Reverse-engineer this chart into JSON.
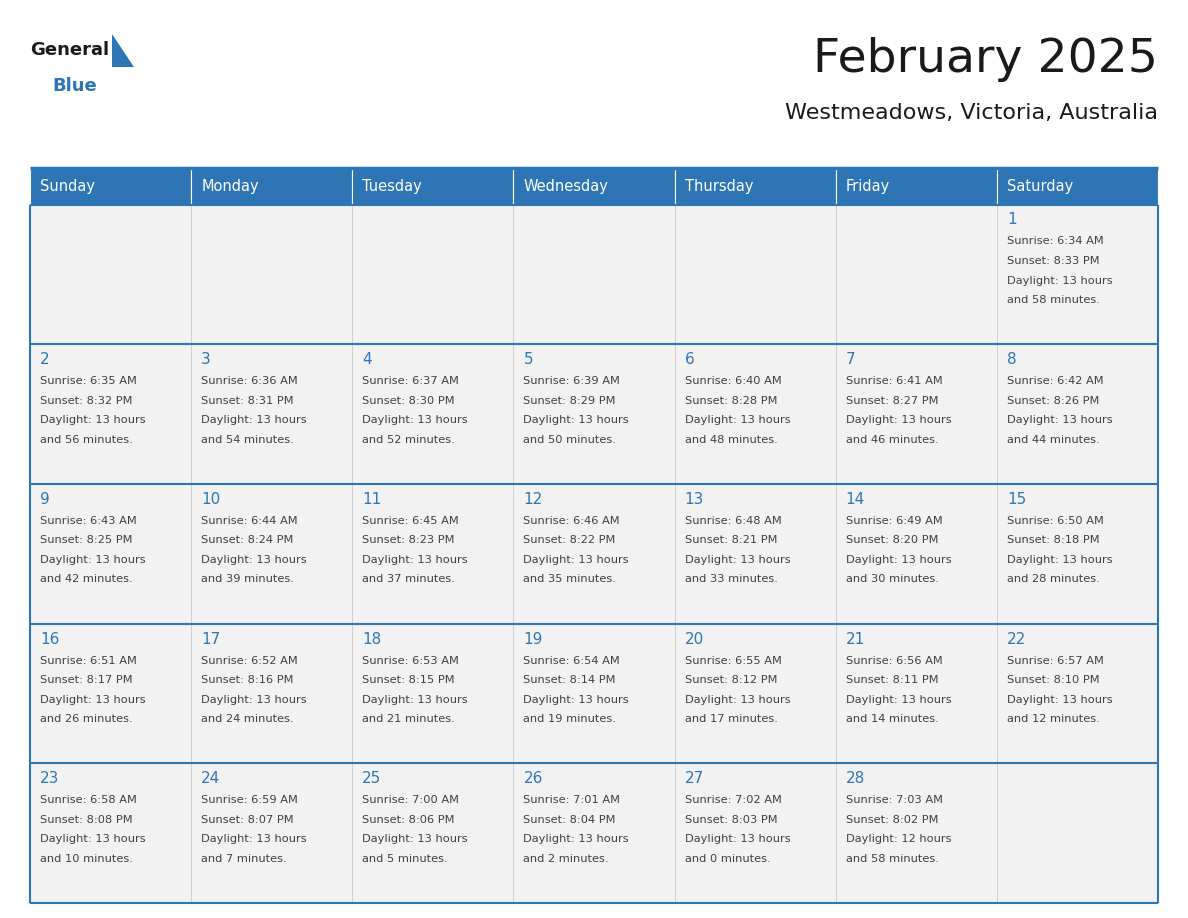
{
  "title": "February 2025",
  "subtitle": "Westmeadows, Victoria, Australia",
  "days_of_week": [
    "Sunday",
    "Monday",
    "Tuesday",
    "Wednesday",
    "Thursday",
    "Friday",
    "Saturday"
  ],
  "header_bg": "#2E75B6",
  "header_text": "#FFFFFF",
  "cell_bg": "#F2F2F2",
  "line_color": "#2E75B6",
  "day_number_color": "#2E75B6",
  "text_color": "#404040",
  "logo_general_color": "#1a1a1a",
  "logo_blue_color": "#2E75B6",
  "calendar_data": [
    [
      null,
      null,
      null,
      null,
      null,
      null,
      {
        "day": 1,
        "sunrise": "6:34 AM",
        "sunset": "8:33 PM",
        "daylight_h": "13 hours",
        "daylight_m": "58 minutes."
      }
    ],
    [
      {
        "day": 2,
        "sunrise": "6:35 AM",
        "sunset": "8:32 PM",
        "daylight_h": "13 hours",
        "daylight_m": "56 minutes."
      },
      {
        "day": 3,
        "sunrise": "6:36 AM",
        "sunset": "8:31 PM",
        "daylight_h": "13 hours",
        "daylight_m": "54 minutes."
      },
      {
        "day": 4,
        "sunrise": "6:37 AM",
        "sunset": "8:30 PM",
        "daylight_h": "13 hours",
        "daylight_m": "52 minutes."
      },
      {
        "day": 5,
        "sunrise": "6:39 AM",
        "sunset": "8:29 PM",
        "daylight_h": "13 hours",
        "daylight_m": "50 minutes."
      },
      {
        "day": 6,
        "sunrise": "6:40 AM",
        "sunset": "8:28 PM",
        "daylight_h": "13 hours",
        "daylight_m": "48 minutes."
      },
      {
        "day": 7,
        "sunrise": "6:41 AM",
        "sunset": "8:27 PM",
        "daylight_h": "13 hours",
        "daylight_m": "46 minutes."
      },
      {
        "day": 8,
        "sunrise": "6:42 AM",
        "sunset": "8:26 PM",
        "daylight_h": "13 hours",
        "daylight_m": "44 minutes."
      }
    ],
    [
      {
        "day": 9,
        "sunrise": "6:43 AM",
        "sunset": "8:25 PM",
        "daylight_h": "13 hours",
        "daylight_m": "42 minutes."
      },
      {
        "day": 10,
        "sunrise": "6:44 AM",
        "sunset": "8:24 PM",
        "daylight_h": "13 hours",
        "daylight_m": "39 minutes."
      },
      {
        "day": 11,
        "sunrise": "6:45 AM",
        "sunset": "8:23 PM",
        "daylight_h": "13 hours",
        "daylight_m": "37 minutes."
      },
      {
        "day": 12,
        "sunrise": "6:46 AM",
        "sunset": "8:22 PM",
        "daylight_h": "13 hours",
        "daylight_m": "35 minutes."
      },
      {
        "day": 13,
        "sunrise": "6:48 AM",
        "sunset": "8:21 PM",
        "daylight_h": "13 hours",
        "daylight_m": "33 minutes."
      },
      {
        "day": 14,
        "sunrise": "6:49 AM",
        "sunset": "8:20 PM",
        "daylight_h": "13 hours",
        "daylight_m": "30 minutes."
      },
      {
        "day": 15,
        "sunrise": "6:50 AM",
        "sunset": "8:18 PM",
        "daylight_h": "13 hours",
        "daylight_m": "28 minutes."
      }
    ],
    [
      {
        "day": 16,
        "sunrise": "6:51 AM",
        "sunset": "8:17 PM",
        "daylight_h": "13 hours",
        "daylight_m": "26 minutes."
      },
      {
        "day": 17,
        "sunrise": "6:52 AM",
        "sunset": "8:16 PM",
        "daylight_h": "13 hours",
        "daylight_m": "24 minutes."
      },
      {
        "day": 18,
        "sunrise": "6:53 AM",
        "sunset": "8:15 PM",
        "daylight_h": "13 hours",
        "daylight_m": "21 minutes."
      },
      {
        "day": 19,
        "sunrise": "6:54 AM",
        "sunset": "8:14 PM",
        "daylight_h": "13 hours",
        "daylight_m": "19 minutes."
      },
      {
        "day": 20,
        "sunrise": "6:55 AM",
        "sunset": "8:12 PM",
        "daylight_h": "13 hours",
        "daylight_m": "17 minutes."
      },
      {
        "day": 21,
        "sunrise": "6:56 AM",
        "sunset": "8:11 PM",
        "daylight_h": "13 hours",
        "daylight_m": "14 minutes."
      },
      {
        "day": 22,
        "sunrise": "6:57 AM",
        "sunset": "8:10 PM",
        "daylight_h": "13 hours",
        "daylight_m": "12 minutes."
      }
    ],
    [
      {
        "day": 23,
        "sunrise": "6:58 AM",
        "sunset": "8:08 PM",
        "daylight_h": "13 hours",
        "daylight_m": "10 minutes."
      },
      {
        "day": 24,
        "sunrise": "6:59 AM",
        "sunset": "8:07 PM",
        "daylight_h": "13 hours",
        "daylight_m": "7 minutes."
      },
      {
        "day": 25,
        "sunrise": "7:00 AM",
        "sunset": "8:06 PM",
        "daylight_h": "13 hours",
        "daylight_m": "5 minutes."
      },
      {
        "day": 26,
        "sunrise": "7:01 AM",
        "sunset": "8:04 PM",
        "daylight_h": "13 hours",
        "daylight_m": "2 minutes."
      },
      {
        "day": 27,
        "sunrise": "7:02 AM",
        "sunset": "8:03 PM",
        "daylight_h": "13 hours",
        "daylight_m": "0 minutes."
      },
      {
        "day": 28,
        "sunrise": "7:03 AM",
        "sunset": "8:02 PM",
        "daylight_h": "12 hours",
        "daylight_m": "58 minutes."
      },
      null
    ]
  ]
}
